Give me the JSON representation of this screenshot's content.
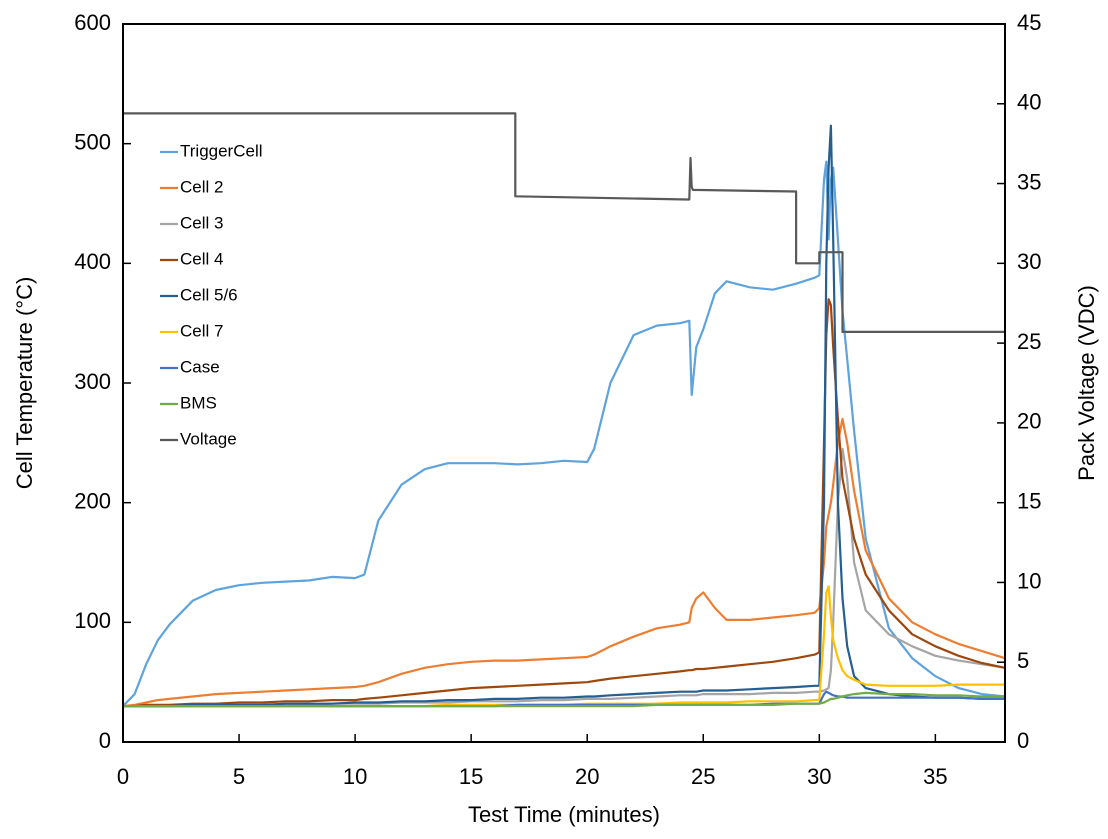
{
  "chart_data": {
    "type": "line",
    "x_label": "Test Time (minutes)",
    "y_label": "Cell Temperature (°C)",
    "y2_label": "Pack Voltage (VDC)",
    "xlim": [
      0,
      38
    ],
    "xticks": [
      0,
      5,
      10,
      15,
      20,
      25,
      30,
      35
    ],
    "ylim": [
      0,
      600
    ],
    "yticks": [
      0,
      100,
      200,
      300,
      400,
      500,
      600
    ],
    "y2lim": [
      0,
      45
    ],
    "y2ticks": [
      0,
      5,
      10,
      15,
      20,
      25,
      30,
      35,
      40,
      45
    ],
    "legend": "upper left",
    "x": [
      0,
      0.5,
      1,
      1.5,
      2,
      3,
      4,
      5,
      6,
      7,
      8,
      9,
      10,
      10.4,
      11,
      12,
      13,
      14,
      15,
      16,
      17,
      18,
      19,
      20,
      20.3,
      21,
      22,
      23,
      24,
      24.4,
      24.5,
      24.7,
      25,
      25.5,
      26,
      27,
      28,
      29,
      29.8,
      30,
      30.2,
      30.3,
      30.4,
      30.5,
      30.6,
      30.8,
      31,
      31.2,
      31.5,
      32,
      33,
      34,
      35,
      36,
      37,
      38
    ],
    "series": [
      {
        "name": "TriggerCell",
        "color": "#5fa3dc",
        "values": [
          30,
          40,
          65,
          85,
          98,
          118,
          127,
          131,
          133,
          134,
          135,
          138,
          137,
          140,
          185,
          215,
          228,
          233,
          233,
          233,
          232,
          233,
          235,
          234,
          245,
          300,
          340,
          348,
          350,
          352,
          290,
          330,
          345,
          375,
          385,
          380,
          378,
          383,
          388,
          390,
          470,
          485,
          420,
          470,
          480,
          420,
          360,
          320,
          260,
          170,
          95,
          70,
          55,
          45,
          40,
          38
        ]
      },
      {
        "name": "Cell 2",
        "color": "#ed7d31",
        "values": [
          30,
          31,
          33,
          35,
          36,
          38,
          40,
          41,
          42,
          43,
          44,
          45,
          46,
          47,
          50,
          57,
          62,
          65,
          67,
          68,
          68,
          69,
          70,
          71,
          73,
          80,
          88,
          95,
          98,
          100,
          112,
          120,
          125,
          112,
          102,
          102,
          104,
          106,
          108,
          112,
          150,
          180,
          190,
          200,
          215,
          250,
          270,
          250,
          210,
          160,
          120,
          100,
          90,
          82,
          76,
          70
        ]
      },
      {
        "name": "Cell 3",
        "color": "#a5a5a5",
        "values": [
          30,
          30,
          30,
          30,
          30,
          30,
          31,
          31,
          31,
          31,
          31,
          32,
          32,
          32,
          32,
          33,
          33,
          33,
          34,
          34,
          34,
          35,
          35,
          36,
          36,
          36,
          37,
          38,
          39,
          39,
          39,
          39,
          40,
          40,
          40,
          40,
          41,
          41,
          42,
          42,
          43,
          44,
          45,
          60,
          100,
          200,
          245,
          220,
          150,
          110,
          90,
          80,
          72,
          68,
          65,
          62
        ]
      },
      {
        "name": "Cell 4",
        "color": "#9e480e",
        "values": [
          30,
          30,
          31,
          31,
          31,
          32,
          32,
          33,
          33,
          34,
          34,
          35,
          35,
          36,
          37,
          39,
          41,
          43,
          45,
          46,
          47,
          48,
          49,
          50,
          51,
          53,
          55,
          57,
          59,
          60,
          60,
          61,
          61,
          62,
          63,
          65,
          67,
          70,
          73,
          75,
          250,
          340,
          370,
          365,
          330,
          270,
          220,
          200,
          170,
          140,
          110,
          90,
          80,
          72,
          66,
          62
        ]
      },
      {
        "name": "Cell 5/6",
        "color": "#255e91",
        "values": [
          30,
          30,
          30,
          30,
          30,
          31,
          31,
          31,
          31,
          32,
          32,
          32,
          33,
          33,
          33,
          34,
          34,
          35,
          35,
          36,
          36,
          37,
          37,
          38,
          38,
          39,
          40,
          41,
          42,
          42,
          42,
          42,
          43,
          43,
          43,
          44,
          45,
          46,
          47,
          47,
          200,
          400,
          480,
          515,
          420,
          200,
          120,
          80,
          55,
          45,
          40,
          38,
          37,
          37,
          36,
          36
        ]
      },
      {
        "name": "Cell 7",
        "color": "#ffc000",
        "values": [
          30,
          30,
          30,
          30,
          30,
          30,
          30,
          30,
          30,
          30,
          30,
          30,
          30,
          30,
          30,
          30,
          30,
          31,
          31,
          31,
          31,
          31,
          31,
          32,
          32,
          32,
          32,
          32,
          33,
          33,
          33,
          33,
          33,
          33,
          33,
          34,
          34,
          34,
          35,
          35,
          90,
          125,
          130,
          105,
          85,
          70,
          60,
          55,
          52,
          48,
          47,
          47,
          47,
          48,
          48,
          48
        ]
      },
      {
        "name": "Case",
        "color": "#4472c4",
        "values": [
          30,
          30,
          30,
          30,
          30,
          30,
          30,
          30,
          30,
          30,
          30,
          30,
          30,
          30,
          30,
          30,
          30,
          30,
          30,
          30,
          31,
          31,
          31,
          31,
          31,
          31,
          31,
          31,
          31,
          31,
          31,
          31,
          31,
          31,
          31,
          31,
          32,
          32,
          32,
          32,
          40,
          42,
          41,
          40,
          39,
          38,
          38,
          37,
          37,
          37,
          37,
          37,
          37,
          37,
          36,
          36
        ]
      },
      {
        "name": "BMS",
        "color": "#70ad47",
        "values": [
          30,
          30,
          30,
          30,
          30,
          30,
          30,
          30,
          30,
          30,
          30,
          30,
          30,
          30,
          30,
          30,
          30,
          30,
          30,
          30,
          30,
          30,
          30,
          30,
          30,
          30,
          30,
          31,
          31,
          31,
          31,
          31,
          31,
          31,
          31,
          31,
          31,
          32,
          32,
          32,
          33,
          34,
          35,
          36,
          36,
          37,
          38,
          39,
          40,
          41,
          40,
          40,
          39,
          39,
          38,
          38
        ]
      },
      {
        "name": "Voltage",
        "color": "#595959",
        "axis": "y2",
        "x": [
          0,
          16.9,
          16.9,
          24.3,
          24.4,
          24.45,
          24.5,
          24.55,
          29,
          29,
          30,
          30,
          31,
          31,
          38
        ],
        "values": [
          39.4,
          39.4,
          34.2,
          34.0,
          34.0,
          36.6,
          34.8,
          34.6,
          34.5,
          30,
          30,
          30.7,
          30.7,
          25.7,
          25.7
        ]
      }
    ]
  }
}
